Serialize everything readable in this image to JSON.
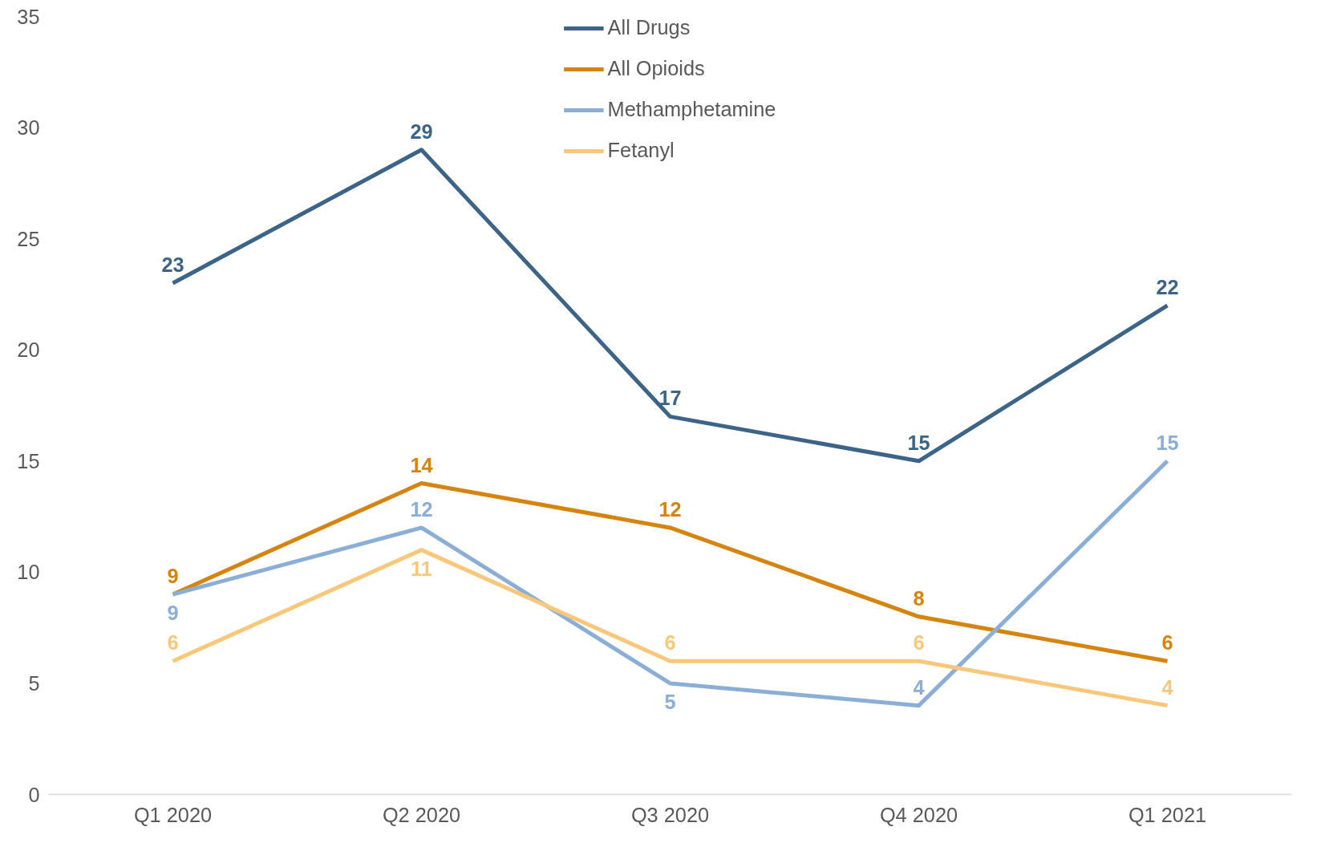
{
  "chart_data": {
    "type": "line",
    "categories": [
      "Q1 2020",
      "Q2 2020",
      "Q3 2020",
      "Q4 2020",
      "Q1 2021"
    ],
    "series": [
      {
        "name": "All Drugs",
        "color": "#3b6488",
        "values": [
          23,
          29,
          17,
          15,
          22
        ]
      },
      {
        "name": "All Opioids",
        "color": "#d4840f",
        "values": [
          9,
          14,
          12,
          8,
          6
        ]
      },
      {
        "name": "Methamphetamine",
        "color": "#8aaed6",
        "values": [
          9,
          12,
          5,
          4,
          15
        ]
      },
      {
        "name": "Fetanyl",
        "color": "#f8c77a",
        "values": [
          6,
          11,
          6,
          6,
          4
        ]
      }
    ],
    "ylim": [
      0,
      35
    ],
    "yticks": [
      0,
      5,
      10,
      15,
      20,
      25,
      30,
      35
    ],
    "grid": false,
    "legend": "top",
    "data_labels": true,
    "marker": "none",
    "line_style": "solid"
  }
}
